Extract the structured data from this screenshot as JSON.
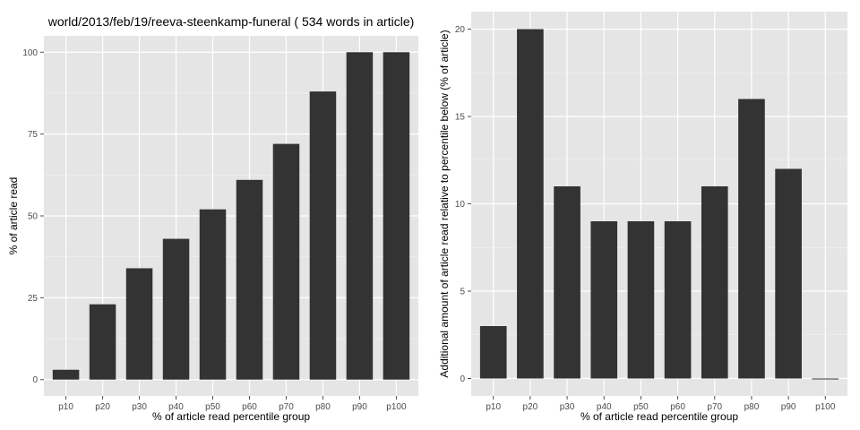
{
  "colors": {
    "panel_bg": "#e5e5e5",
    "grid": "#ffffff",
    "bar": "#333333",
    "tick": "#4d4d4d"
  },
  "chart_data": [
    {
      "type": "bar",
      "title": "world/2013/feb/19/reeva-steenkamp-funeral ( 534 words in article)",
      "xlabel": "% of article read percentile group",
      "ylabel": "% of article read",
      "categories": [
        "p10",
        "p20",
        "p30",
        "p40",
        "p50",
        "p60",
        "p70",
        "p80",
        "p90",
        "p100"
      ],
      "values": [
        3,
        23,
        34,
        43,
        52,
        61,
        72,
        88,
        100,
        100
      ],
      "ylim": [
        -5,
        105
      ],
      "yticks": [
        0,
        25,
        50,
        75,
        100
      ],
      "grid": true
    },
    {
      "type": "bar",
      "title": "",
      "xlabel": "% of article read percentile group",
      "ylabel": "Additional amount of article read relative to percentile below (% of article)",
      "categories": [
        "p10",
        "p20",
        "p30",
        "p40",
        "p50",
        "p60",
        "p70",
        "p80",
        "p90",
        "p100"
      ],
      "values": [
        3,
        20,
        11,
        9,
        9,
        9,
        11,
        16,
        12,
        0
      ],
      "ylim": [
        -1,
        21
      ],
      "yticks": [
        0,
        5,
        10,
        15,
        20
      ],
      "grid": true
    }
  ]
}
